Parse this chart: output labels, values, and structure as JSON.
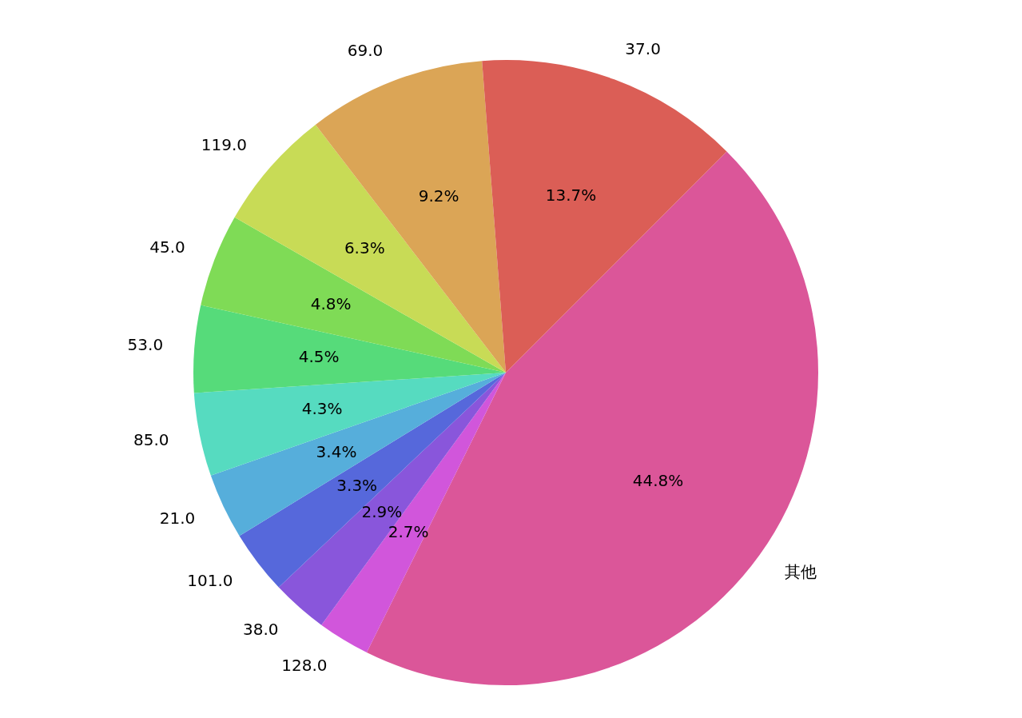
{
  "chart_data": {
    "type": "pie",
    "categories": [
      "37.0",
      "69.0",
      "119.0",
      "45.0",
      "53.0",
      "85.0",
      "21.0",
      "101.0",
      "38.0",
      "128.0",
      "其他"
    ],
    "values": [
      13.7,
      9.2,
      6.3,
      4.8,
      4.5,
      4.3,
      3.4,
      3.3,
      2.9,
      2.7,
      44.8
    ],
    "value_labels": [
      "13.7%",
      "9.2%",
      "6.3%",
      "4.8%",
      "4.5%",
      "4.3%",
      "3.4%",
      "3.3%",
      "2.9%",
      "2.7%",
      "44.8%"
    ],
    "colors": [
      "#db5e56",
      "#dba556",
      "#c8db56",
      "#7fdb56",
      "#56db7a",
      "#56dbc0",
      "#56aedb",
      "#5668db",
      "#8956db",
      "#d156db",
      "#db5699"
    ],
    "legend": false
  }
}
